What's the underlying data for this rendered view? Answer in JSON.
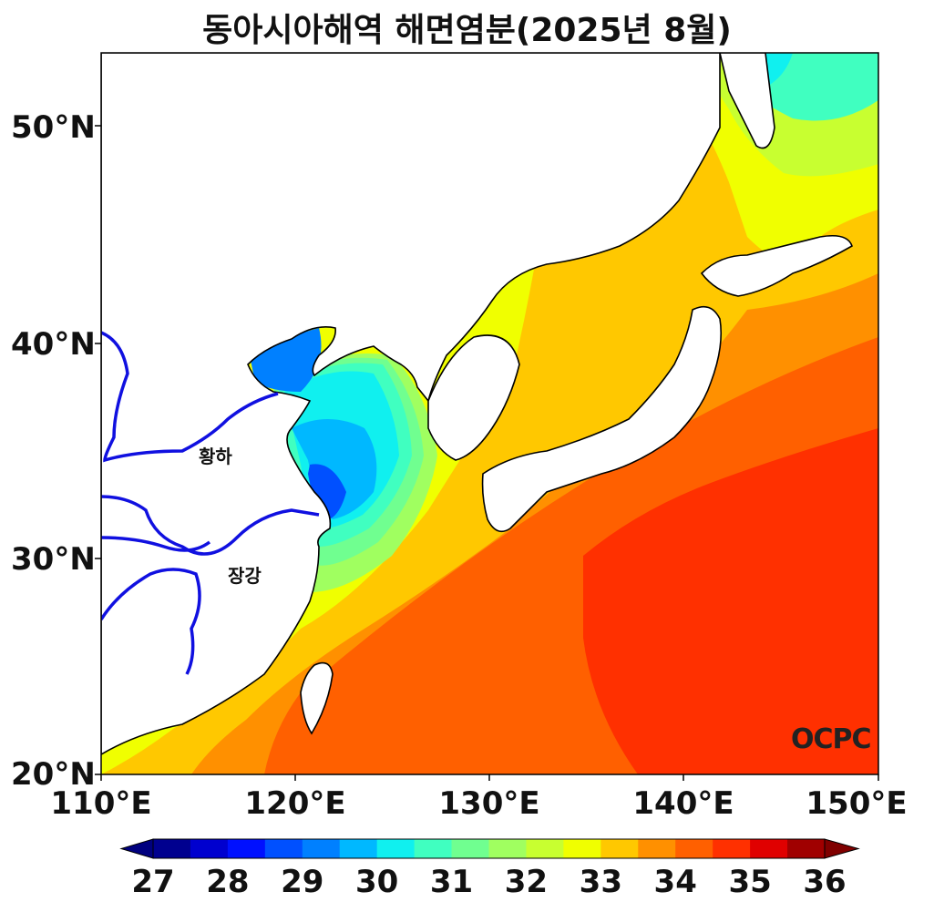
{
  "title": "동아시아해역 해면염분(2025년 8월)",
  "axes": {
    "x_ticks": [
      "110°E",
      "120°E",
      "130°E",
      "140°E",
      "150°E"
    ],
    "y_ticks": [
      "50°N",
      "40°N",
      "30°N",
      "20°N"
    ],
    "lon_range": [
      110,
      150
    ],
    "lat_range": [
      20,
      53.5
    ]
  },
  "colorbar": {
    "ticks": [
      "27",
      "28",
      "29",
      "30",
      "31",
      "32",
      "33",
      "34",
      "35",
      "36"
    ],
    "range": [
      27,
      36
    ],
    "step": 0.5,
    "colors": [
      "#00008f",
      "#0000cf",
      "#0010ff",
      "#0050ff",
      "#0080ff",
      "#00b8ff",
      "#10f0ef",
      "#40ffc0",
      "#70ff90",
      "#a0ff60",
      "#c8ff30",
      "#f0ff00",
      "#ffc800",
      "#ff9000",
      "#ff6000",
      "#ff3000",
      "#e00000",
      "#a00000"
    ],
    "under_color": "#00007f",
    "over_color": "#800000"
  },
  "labels": {
    "yellow_river": "황하",
    "yangtze": "장강"
  },
  "logo": "OCPC",
  "colors": {
    "coastline": "#000000",
    "river": "#1010e0",
    "land": "#ffffff"
  }
}
